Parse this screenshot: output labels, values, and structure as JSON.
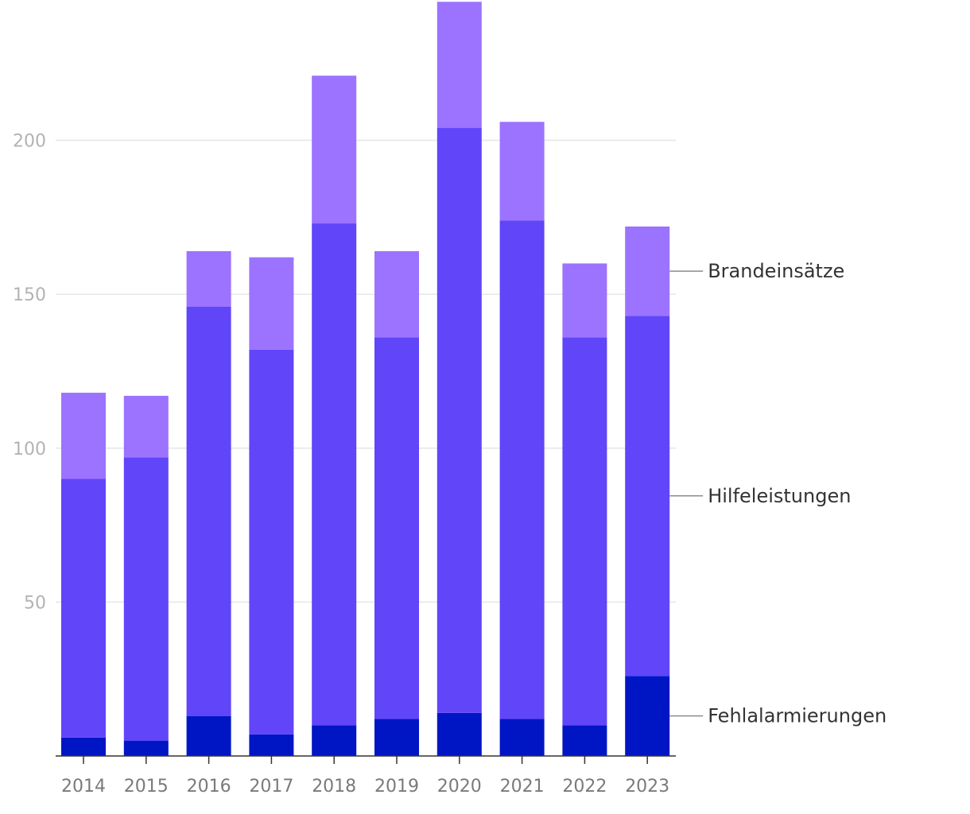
{
  "chart_data": {
    "type": "bar",
    "stacked": true,
    "title": "",
    "xlabel": "",
    "ylabel": "",
    "ylim": [
      0,
      243
    ],
    "yticks": [
      50,
      100,
      150,
      200
    ],
    "grid": true,
    "legend_position": "right",
    "categories": [
      "2014",
      "2015",
      "2016",
      "2017",
      "2018",
      "2019",
      "2020",
      "2021",
      "2022",
      "2023"
    ],
    "series": [
      {
        "name": "Fehlalarmierungen",
        "color": "#0016c5",
        "values": [
          6,
          5,
          13,
          7,
          10,
          12,
          14,
          12,
          10,
          26
        ]
      },
      {
        "name": "Hilfeleistungen",
        "color": "#6045f9",
        "values": [
          84,
          92,
          133,
          125,
          163,
          124,
          190,
          162,
          126,
          117
        ]
      },
      {
        "name": "Brandeinsätze",
        "color": "#9b73ff",
        "values": [
          28,
          20,
          18,
          30,
          48,
          28,
          41,
          32,
          24,
          29
        ]
      }
    ]
  }
}
